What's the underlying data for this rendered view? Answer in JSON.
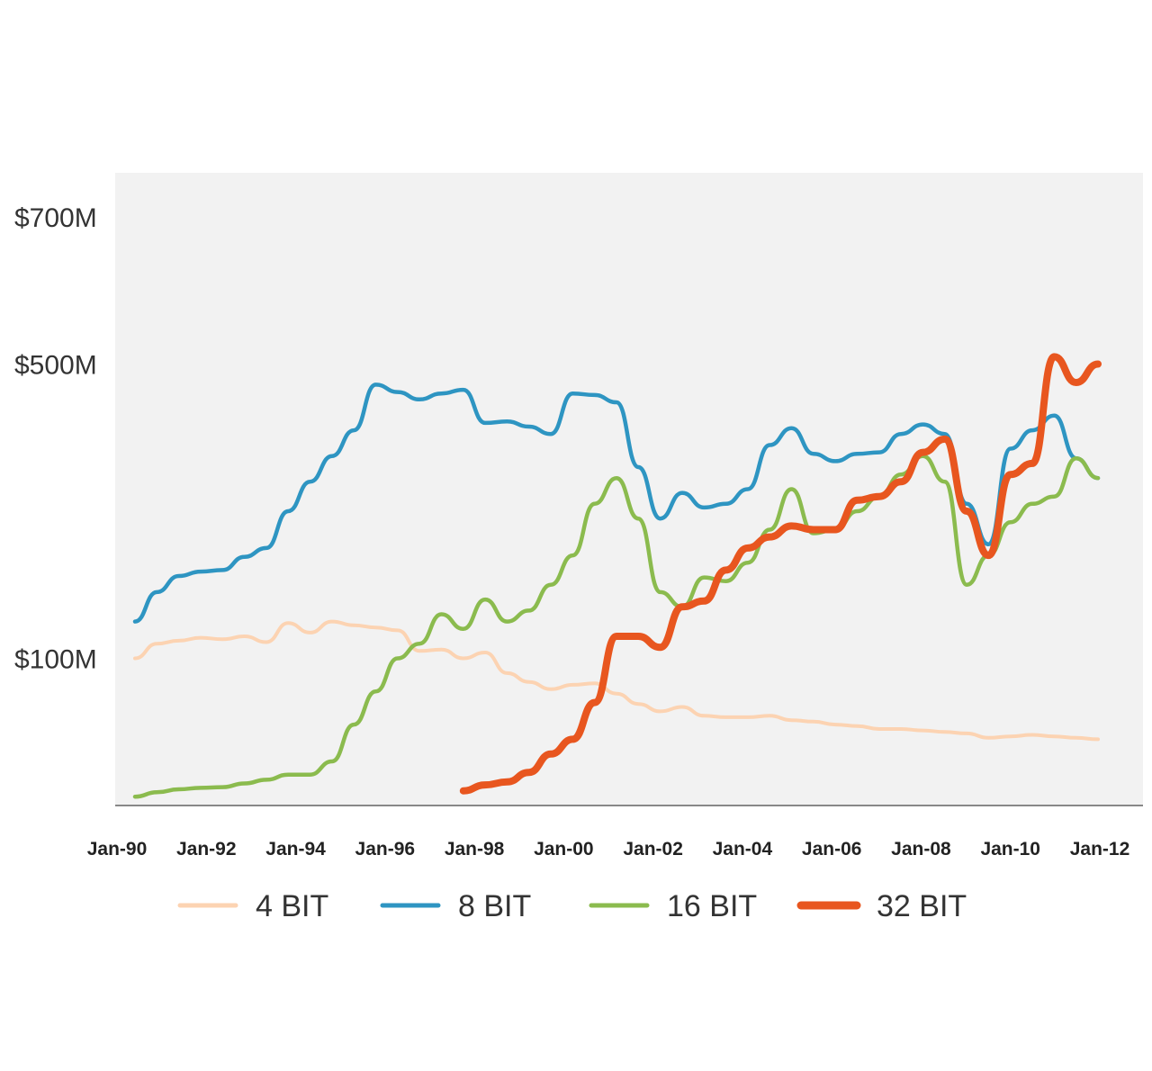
{
  "chart_data": {
    "type": "line",
    "title": "",
    "xlabel": "",
    "ylabel": "",
    "x_range": [
      "1990-01",
      "2012-01"
    ],
    "x_ticks": [
      "Jan-90",
      "Jan-92",
      "Jan-94",
      "Jan-96",
      "Jan-98",
      "Jan-00",
      "Jan-02",
      "Jan-04",
      "Jan-06",
      "Jan-08",
      "Jan-10",
      "Jan-12"
    ],
    "y_ticks": [
      "$100M",
      "$500M",
      "$700M"
    ],
    "y_ticks_note_values": [
      100,
      500,
      700
    ],
    "y_unit": "$M",
    "ylim": [
      -100,
      760
    ],
    "grid": false,
    "legend_position": "bottom",
    "background_color": "#f2f2f2",
    "series": [
      {
        "name": "4 BIT",
        "color": "#fcd3b2",
        "stroke": "thin",
        "points": [
          [
            "1990-01",
            100
          ],
          [
            "1990-07",
            120
          ],
          [
            "1991-01",
            124
          ],
          [
            "1991-07",
            128
          ],
          [
            "1992-01",
            126
          ],
          [
            "1992-07",
            130
          ],
          [
            "1993-01",
            122
          ],
          [
            "1993-07",
            148
          ],
          [
            "1994-01",
            135
          ],
          [
            "1994-07",
            150
          ],
          [
            "1995-01",
            145
          ],
          [
            "1995-07",
            142
          ],
          [
            "1996-01",
            138
          ],
          [
            "1996-07",
            110
          ],
          [
            "1997-01",
            112
          ],
          [
            "1997-07",
            100
          ],
          [
            "1998-01",
            108
          ],
          [
            "1998-07",
            80
          ],
          [
            "1999-01",
            68
          ],
          [
            "1999-07",
            58
          ],
          [
            "2000-01",
            64
          ],
          [
            "2000-07",
            66
          ],
          [
            "2001-01",
            52
          ],
          [
            "2001-07",
            38
          ],
          [
            "2002-01",
            28
          ],
          [
            "2002-07",
            34
          ],
          [
            "2003-01",
            22
          ],
          [
            "2003-07",
            20
          ],
          [
            "2004-01",
            20
          ],
          [
            "2004-07",
            22
          ],
          [
            "2005-01",
            16
          ],
          [
            "2005-07",
            14
          ],
          [
            "2006-01",
            10
          ],
          [
            "2006-07",
            8
          ],
          [
            "2007-01",
            4
          ],
          [
            "2007-07",
            4
          ],
          [
            "2008-01",
            2
          ],
          [
            "2008-07",
            0
          ],
          [
            "2009-01",
            -2
          ],
          [
            "2009-07",
            -8
          ],
          [
            "2010-01",
            -6
          ],
          [
            "2010-07",
            -4
          ],
          [
            "2011-01",
            -6
          ],
          [
            "2011-07",
            -8
          ],
          [
            "2012-01",
            -10
          ]
        ]
      },
      {
        "name": "8 BIT",
        "color": "#2e95c2",
        "stroke": "medium",
        "points": [
          [
            "1990-01",
            150
          ],
          [
            "1990-07",
            190
          ],
          [
            "1991-01",
            212
          ],
          [
            "1991-07",
            218
          ],
          [
            "1992-01",
            220
          ],
          [
            "1992-07",
            238
          ],
          [
            "1993-01",
            250
          ],
          [
            "1993-07",
            300
          ],
          [
            "1994-01",
            340
          ],
          [
            "1994-07",
            375
          ],
          [
            "1995-01",
            410
          ],
          [
            "1995-07",
            472
          ],
          [
            "1996-01",
            462
          ],
          [
            "1996-07",
            452
          ],
          [
            "1997-01",
            460
          ],
          [
            "1997-07",
            465
          ],
          [
            "1998-01",
            420
          ],
          [
            "1998-07",
            422
          ],
          [
            "1999-01",
            415
          ],
          [
            "1999-07",
            405
          ],
          [
            "2000-01",
            460
          ],
          [
            "2000-07",
            458
          ],
          [
            "2001-01",
            448
          ],
          [
            "2001-07",
            360
          ],
          [
            "2002-01",
            290
          ],
          [
            "2002-07",
            325
          ],
          [
            "2003-01",
            305
          ],
          [
            "2003-07",
            310
          ],
          [
            "2004-01",
            330
          ],
          [
            "2004-07",
            390
          ],
          [
            "2005-01",
            413
          ],
          [
            "2005-07",
            378
          ],
          [
            "2006-01",
            368
          ],
          [
            "2006-07",
            378
          ],
          [
            "2007-01",
            380
          ],
          [
            "2007-07",
            405
          ],
          [
            "2008-01",
            418
          ],
          [
            "2008-07",
            405
          ],
          [
            "2009-01",
            310
          ],
          [
            "2009-07",
            255
          ],
          [
            "2010-01",
            385
          ],
          [
            "2010-07",
            410
          ],
          [
            "2011-01",
            430
          ],
          [
            "2011-07",
            372
          ],
          [
            "2012-01",
            345
          ]
        ]
      },
      {
        "name": "16 BIT",
        "color": "#8bbb4e",
        "stroke": "medium",
        "points": [
          [
            "1990-01",
            -88
          ],
          [
            "1990-07",
            -82
          ],
          [
            "1991-01",
            -78
          ],
          [
            "1991-07",
            -76
          ],
          [
            "1992-01",
            -75
          ],
          [
            "1992-07",
            -70
          ],
          [
            "1993-01",
            -65
          ],
          [
            "1993-07",
            -58
          ],
          [
            "1994-01",
            -58
          ],
          [
            "1994-07",
            -40
          ],
          [
            "1995-01",
            10
          ],
          [
            "1995-07",
            55
          ],
          [
            "1996-01",
            100
          ],
          [
            "1996-07",
            120
          ],
          [
            "1997-01",
            160
          ],
          [
            "1997-07",
            140
          ],
          [
            "1998-01",
            180
          ],
          [
            "1998-07",
            150
          ],
          [
            "1999-01",
            165
          ],
          [
            "1999-07",
            200
          ],
          [
            "2000-01",
            240
          ],
          [
            "2000-07",
            310
          ],
          [
            "2001-01",
            345
          ],
          [
            "2001-07",
            290
          ],
          [
            "2002-01",
            190
          ],
          [
            "2002-07",
            170
          ],
          [
            "2003-01",
            210
          ],
          [
            "2003-07",
            205
          ],
          [
            "2004-01",
            230
          ],
          [
            "2004-07",
            275
          ],
          [
            "2005-01",
            330
          ],
          [
            "2005-07",
            270
          ],
          [
            "2006-01",
            275
          ],
          [
            "2006-07",
            300
          ],
          [
            "2007-01",
            320
          ],
          [
            "2007-07",
            350
          ],
          [
            "2008-01",
            375
          ],
          [
            "2008-07",
            340
          ],
          [
            "2009-01",
            200
          ],
          [
            "2009-07",
            240
          ],
          [
            "2010-01",
            285
          ],
          [
            "2010-07",
            310
          ],
          [
            "2011-01",
            320
          ],
          [
            "2011-07",
            372
          ],
          [
            "2012-01",
            345
          ]
        ]
      },
      {
        "name": "32 BIT",
        "color": "#e8561f",
        "stroke": "thick",
        "points": [
          [
            "1997-07",
            -80
          ],
          [
            "1998-01",
            -72
          ],
          [
            "1998-07",
            -68
          ],
          [
            "1999-01",
            -55
          ],
          [
            "1999-07",
            -30
          ],
          [
            "2000-01",
            -10
          ],
          [
            "2000-07",
            40
          ],
          [
            "2001-01",
            130
          ],
          [
            "2001-07",
            130
          ],
          [
            "2002-01",
            115
          ],
          [
            "2002-07",
            170
          ],
          [
            "2003-01",
            178
          ],
          [
            "2003-07",
            220
          ],
          [
            "2004-01",
            250
          ],
          [
            "2004-07",
            265
          ],
          [
            "2005-01",
            280
          ],
          [
            "2005-07",
            275
          ],
          [
            "2006-01",
            275
          ],
          [
            "2006-07",
            315
          ],
          [
            "2007-01",
            320
          ],
          [
            "2007-07",
            340
          ],
          [
            "2008-01",
            380
          ],
          [
            "2008-07",
            398
          ],
          [
            "2009-01",
            300
          ],
          [
            "2009-07",
            240
          ],
          [
            "2010-01",
            350
          ],
          [
            "2010-07",
            365
          ],
          [
            "2011-01",
            510
          ],
          [
            "2011-07",
            475
          ],
          [
            "2012-01",
            500
          ]
        ]
      }
    ]
  }
}
